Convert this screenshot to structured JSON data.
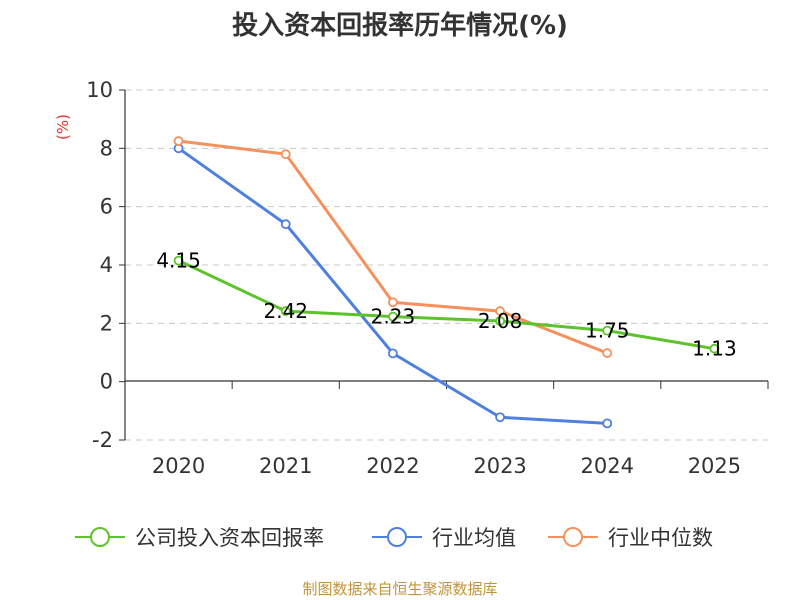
{
  "chart_data": {
    "type": "line",
    "title": "投入资本回报率历年情况(%)",
    "ylabel": "(%)",
    "xlabel": "",
    "categories": [
      "2020",
      "2021",
      "2022",
      "2023",
      "2024",
      "2025"
    ],
    "ylim": [
      -2,
      10
    ],
    "yticks": [
      -2,
      0,
      2,
      4,
      6,
      8,
      10
    ],
    "grid": true,
    "legend_position": "bottom",
    "series": [
      {
        "name": "公司投入资本回报率",
        "color": "#5dc32a",
        "values": [
          4.15,
          2.42,
          2.23,
          2.08,
          1.75,
          1.13
        ],
        "labels": [
          "4.15",
          "2.42",
          "2.23",
          "2.08",
          "1.75",
          "1.13"
        ]
      },
      {
        "name": "行业均值",
        "color": "#4f80df",
        "values": [
          8.0,
          5.4,
          0.97,
          -1.22,
          -1.43,
          null
        ]
      },
      {
        "name": "行业中位数",
        "color": "#f5915c",
        "values": [
          8.25,
          7.8,
          2.72,
          2.42,
          0.98,
          null
        ]
      }
    ],
    "source": "制图数据来自恒生聚源数据库"
  }
}
